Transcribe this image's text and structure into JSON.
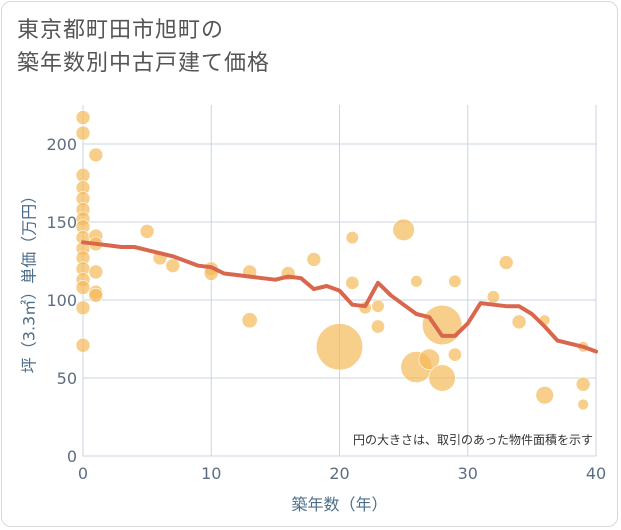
{
  "title": "東京都町田市旭町の\n築年数別中古戸建て価格",
  "chart_data": {
    "type": "scatter",
    "xlabel": "築年数（年）",
    "ylabel": "坪（3.3㎡）単価（万円）",
    "xlim": [
      0,
      40
    ],
    "ylim": [
      0,
      225
    ],
    "xticks": [
      0,
      10,
      20,
      30,
      40
    ],
    "yticks": [
      0,
      50,
      100,
      150,
      200
    ],
    "grid": true,
    "note": "円の大きさは、取引のあった物件面積を示す",
    "bubble_color": "#f5b95a",
    "line_color": "#d9674e",
    "points": [
      {
        "x": 0,
        "y": 217,
        "size": 1
      },
      {
        "x": 0,
        "y": 207,
        "size": 1
      },
      {
        "x": 0,
        "y": 180,
        "size": 1
      },
      {
        "x": 0,
        "y": 172,
        "size": 1
      },
      {
        "x": 0,
        "y": 165,
        "size": 1
      },
      {
        "x": 0,
        "y": 158,
        "size": 1
      },
      {
        "x": 0,
        "y": 152,
        "size": 1
      },
      {
        "x": 0,
        "y": 147,
        "size": 1
      },
      {
        "x": 0,
        "y": 140,
        "size": 1
      },
      {
        "x": 0,
        "y": 133,
        "size": 1
      },
      {
        "x": 0,
        "y": 127,
        "size": 1
      },
      {
        "x": 0,
        "y": 120,
        "size": 1
      },
      {
        "x": 0,
        "y": 113,
        "size": 1
      },
      {
        "x": 0,
        "y": 108,
        "size": 1
      },
      {
        "x": 0,
        "y": 95,
        "size": 1
      },
      {
        "x": 0,
        "y": 71,
        "size": 1
      },
      {
        "x": 1,
        "y": 193,
        "size": 1
      },
      {
        "x": 1,
        "y": 141,
        "size": 1
      },
      {
        "x": 1,
        "y": 136,
        "size": 1
      },
      {
        "x": 1,
        "y": 118,
        "size": 1
      },
      {
        "x": 1,
        "y": 105,
        "size": 1
      },
      {
        "x": 1,
        "y": 103,
        "size": 1
      },
      {
        "x": 5,
        "y": 144,
        "size": 1
      },
      {
        "x": 6,
        "y": 127,
        "size": 1
      },
      {
        "x": 7,
        "y": 122,
        "size": 1
      },
      {
        "x": 10,
        "y": 120,
        "size": 1
      },
      {
        "x": 10,
        "y": 117,
        "size": 1
      },
      {
        "x": 13,
        "y": 118,
        "size": 1
      },
      {
        "x": 13,
        "y": 87,
        "size": 1.2
      },
      {
        "x": 16,
        "y": 117,
        "size": 1
      },
      {
        "x": 18,
        "y": 126,
        "size": 1
      },
      {
        "x": 20,
        "y": 70,
        "size": 11
      },
      {
        "x": 21,
        "y": 140,
        "size": 0.8
      },
      {
        "x": 21,
        "y": 111,
        "size": 0.9
      },
      {
        "x": 22,
        "y": 95,
        "size": 0.8
      },
      {
        "x": 23,
        "y": 96,
        "size": 0.8
      },
      {
        "x": 23,
        "y": 83,
        "size": 0.9
      },
      {
        "x": 25,
        "y": 145,
        "size": 2.4
      },
      {
        "x": 26,
        "y": 112,
        "size": 0.7
      },
      {
        "x": 26,
        "y": 57,
        "size": 5
      },
      {
        "x": 27,
        "y": 62,
        "size": 2.2
      },
      {
        "x": 28,
        "y": 84,
        "size": 8
      },
      {
        "x": 28,
        "y": 50,
        "size": 3.6
      },
      {
        "x": 29,
        "y": 112,
        "size": 0.8
      },
      {
        "x": 29,
        "y": 65,
        "size": 0.9
      },
      {
        "x": 32,
        "y": 102,
        "size": 0.8
      },
      {
        "x": 33,
        "y": 124,
        "size": 1
      },
      {
        "x": 34,
        "y": 86,
        "size": 1
      },
      {
        "x": 36,
        "y": 87,
        "size": 0.6
      },
      {
        "x": 36,
        "y": 39,
        "size": 1.6
      },
      {
        "x": 39,
        "y": 70,
        "size": 0.6
      },
      {
        "x": 39,
        "y": 46,
        "size": 1
      },
      {
        "x": 39,
        "y": 33,
        "size": 0.6
      }
    ],
    "trend": {
      "x": [
        0,
        1,
        2,
        3,
        4,
        5,
        6,
        7,
        8,
        9,
        10,
        11,
        12,
        13,
        14,
        15,
        16,
        17,
        18,
        19,
        20,
        21,
        22,
        23,
        24,
        25,
        26,
        27,
        28,
        29,
        30,
        31,
        32,
        33,
        34,
        35,
        36,
        37,
        38,
        39,
        40
      ],
      "y": [
        137,
        136,
        135,
        134,
        134,
        132,
        130,
        128,
        125,
        122,
        121,
        117,
        116,
        115,
        114,
        113,
        115,
        114,
        107,
        109,
        106,
        97,
        96,
        111,
        103,
        97,
        91,
        89,
        77,
        77,
        85,
        98,
        97,
        96,
        96,
        91,
        83,
        74,
        72,
        70,
        67
      ]
    }
  }
}
